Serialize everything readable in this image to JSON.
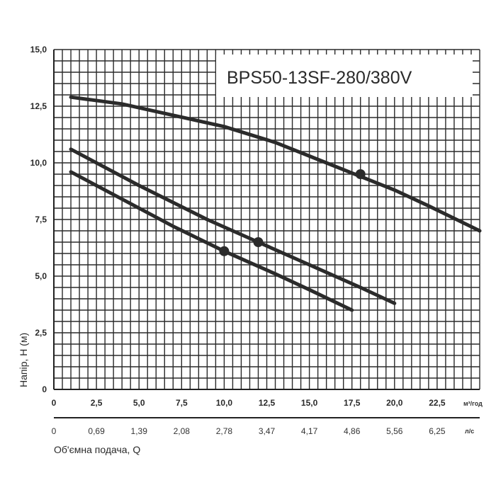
{
  "chart_data": {
    "type": "line",
    "title": "BPS50-13SF-280/380V",
    "ylabel": "Напір, Н (м)",
    "xlabel": "Об'ємна подача, Q",
    "x_unit_primary": "м³/год",
    "x_unit_secondary": "л/с",
    "xlim": [
      0,
      25
    ],
    "ylim": [
      0,
      15
    ],
    "grid": true,
    "x_ticks": [
      "0",
      "2,5",
      "5,0",
      "7,5",
      "10,0",
      "12,5",
      "15,0",
      "17,5",
      "20,0",
      "22,5"
    ],
    "x_ticks_secondary": [
      "0",
      "0,69",
      "1,39",
      "2,08",
      "2,78",
      "3,47",
      "4,17",
      "4,86",
      "5,56",
      "6,25"
    ],
    "y_ticks": [
      "0",
      "2,5",
      "5,0",
      "7,5",
      "10,0",
      "12,5",
      "15,0"
    ],
    "series": [
      {
        "x": [
          1,
          4,
          7,
          10,
          13,
          16,
          18,
          20,
          22,
          25
        ],
        "y": [
          12.9,
          12.6,
          12.1,
          11.6,
          10.9,
          10.0,
          9.4,
          8.8,
          8.1,
          7.0
        ],
        "marker": {
          "x": 18,
          "y": 9.5
        }
      },
      {
        "x": [
          1,
          5,
          9,
          12,
          15,
          18,
          20
        ],
        "y": [
          10.6,
          9.0,
          7.5,
          6.5,
          5.5,
          4.5,
          3.8
        ],
        "marker": {
          "x": 12,
          "y": 6.5
        }
      },
      {
        "x": [
          1,
          4,
          7,
          10,
          13,
          15,
          17.5
        ],
        "y": [
          9.6,
          8.4,
          7.2,
          6.1,
          5.1,
          4.4,
          3.5
        ],
        "marker": {
          "x": 10,
          "y": 6.1
        }
      }
    ],
    "colors": {
      "line": "#2b2b2b",
      "grid": "#2a2a2a",
      "background": "#ffffff"
    }
  }
}
